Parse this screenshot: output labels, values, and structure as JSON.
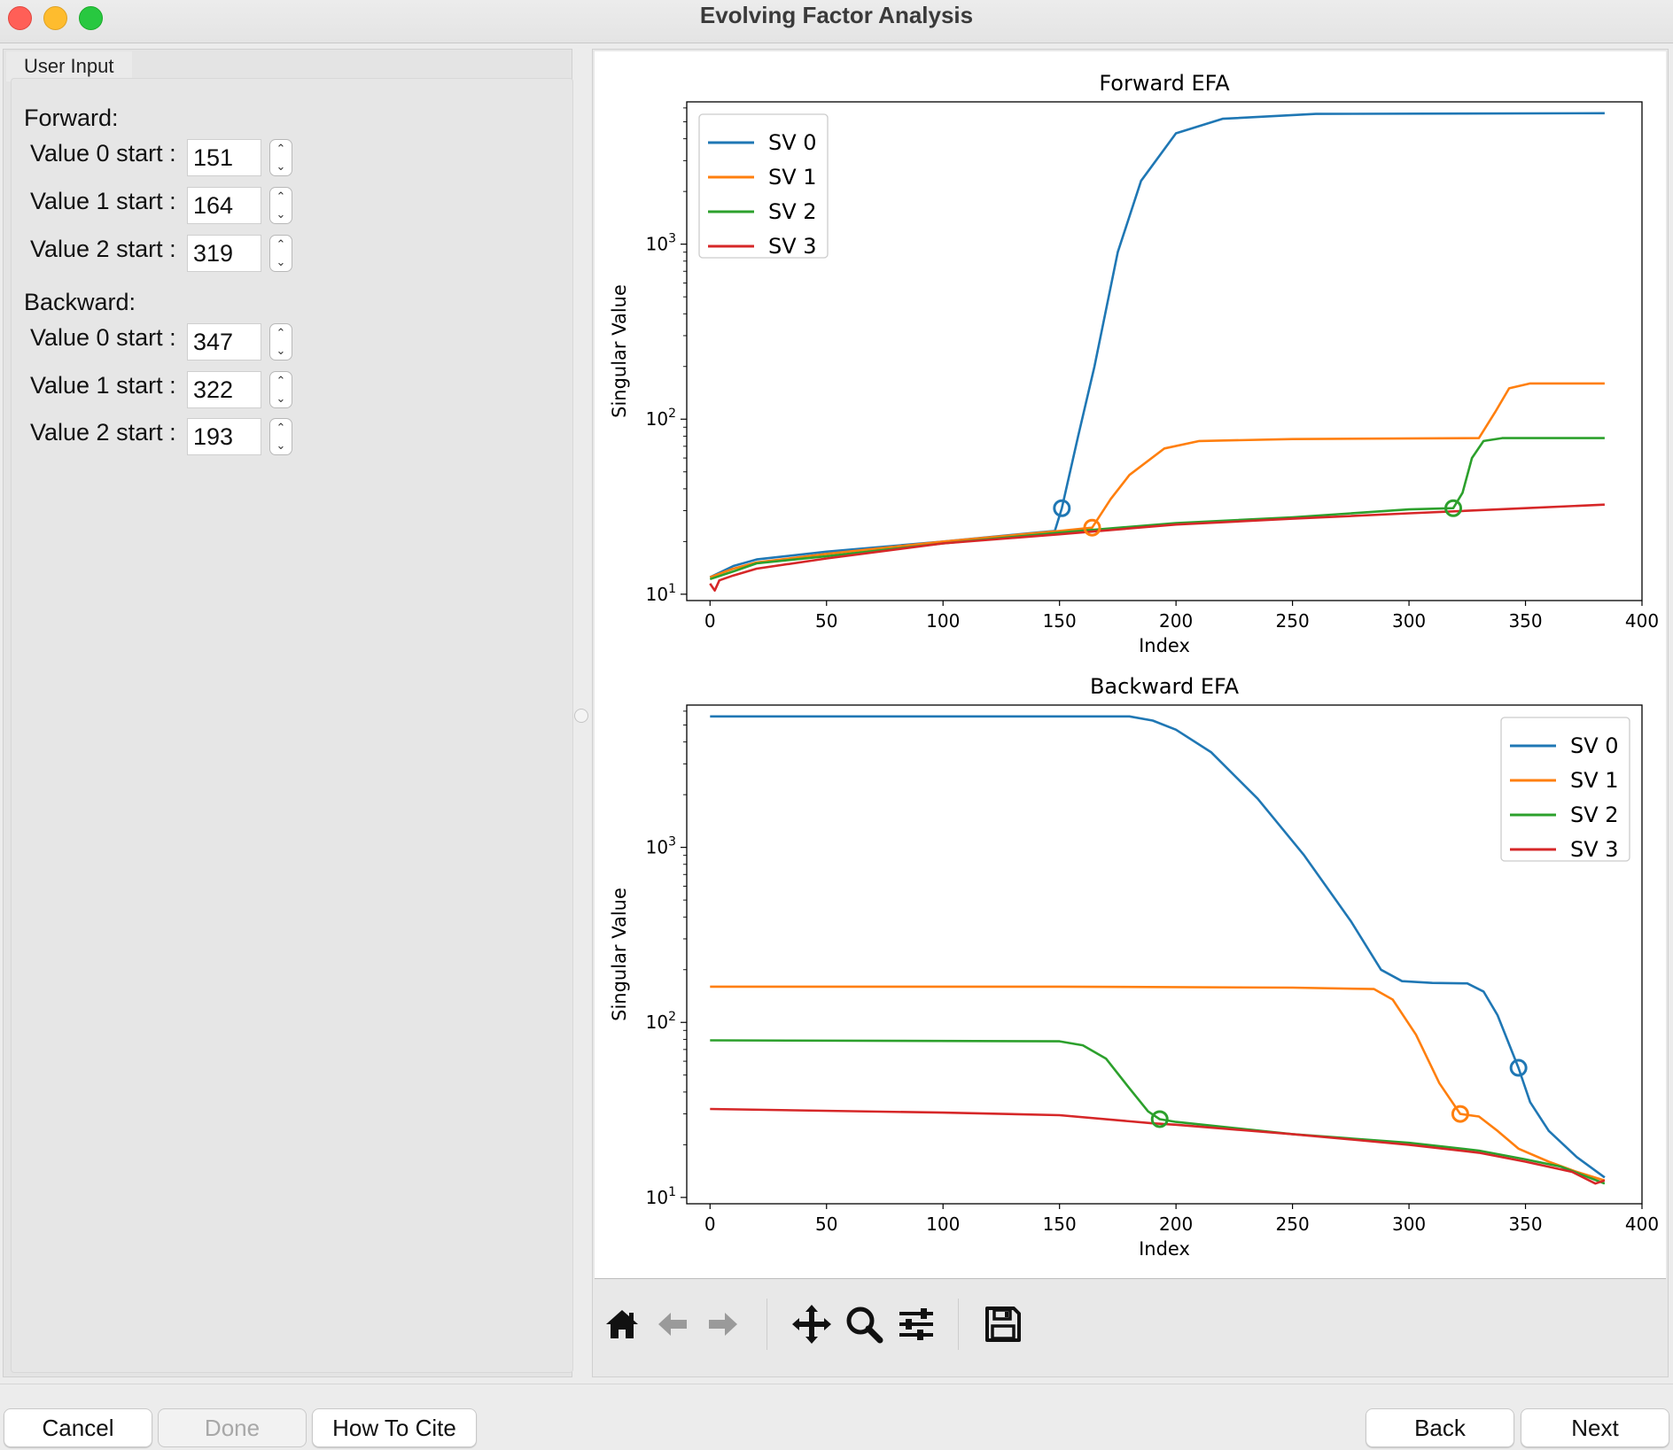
{
  "window": {
    "title": "Evolving Factor Analysis"
  },
  "user_input": {
    "group_title": "User Input",
    "forward": {
      "label": "Forward:",
      "rows": [
        {
          "label": "Value 0 start :",
          "value": "151"
        },
        {
          "label": "Value 1 start :",
          "value": "164"
        },
        {
          "label": "Value 2 start :",
          "value": "319"
        }
      ]
    },
    "backward": {
      "label": "Backward:",
      "rows": [
        {
          "label": "Value 0 start :",
          "value": "347"
        },
        {
          "label": "Value 1 start :",
          "value": "322"
        },
        {
          "label": "Value 2 start :",
          "value": "193"
        }
      ]
    }
  },
  "chart_data": [
    {
      "type": "line",
      "title": "Forward EFA",
      "xlabel": "Index",
      "ylabel": "Singular Value",
      "xlim": [
        -10,
        400
      ],
      "ylim": [
        9.2,
        6500
      ],
      "yscale": "log",
      "xticks": [
        "0",
        "50",
        "100",
        "150",
        "200",
        "250",
        "300",
        "350",
        "400"
      ],
      "yticks": [
        {
          "value": 10,
          "base": "10",
          "exp": "1"
        },
        {
          "value": 100,
          "base": "10",
          "exp": "2"
        },
        {
          "value": 1000,
          "base": "10",
          "exp": "3"
        }
      ],
      "legend_position": "top-left",
      "series": [
        {
          "name": "SV 0",
          "color": "#1f77b4",
          "points": [
            [
              0,
              12.5
            ],
            [
              10,
              14.5
            ],
            [
              20,
              15.8
            ],
            [
              50,
              17.5
            ],
            [
              100,
              20
            ],
            [
              140,
              22.5
            ],
            [
              148,
              23
            ],
            [
              151,
              31
            ],
            [
              158,
              80
            ],
            [
              165,
              200
            ],
            [
              175,
              900
            ],
            [
              185,
              2300
            ],
            [
              200,
              4300
            ],
            [
              220,
              5200
            ],
            [
              260,
              5550
            ],
            [
              384,
              5600
            ]
          ]
        },
        {
          "name": "SV 1",
          "color": "#ff7f0e",
          "points": [
            [
              0,
              12.5
            ],
            [
              10,
              14
            ],
            [
              20,
              15.2
            ],
            [
              50,
              17
            ],
            [
              100,
              20
            ],
            [
              150,
              23
            ],
            [
              164,
              24
            ],
            [
              172,
              35
            ],
            [
              180,
              48
            ],
            [
              195,
              68
            ],
            [
              210,
              75
            ],
            [
              250,
              77
            ],
            [
              330,
              78
            ],
            [
              337,
              110
            ],
            [
              343,
              150
            ],
            [
              352,
              160
            ],
            [
              384,
              160
            ]
          ]
        },
        {
          "name": "SV 2",
          "color": "#2ca02c",
          "points": [
            [
              0,
              12.2
            ],
            [
              10,
              13.5
            ],
            [
              20,
              15
            ],
            [
              50,
              16.5
            ],
            [
              100,
              19.5
            ],
            [
              150,
              22.5
            ],
            [
              200,
              25.5
            ],
            [
              250,
              27.5
            ],
            [
              300,
              30.5
            ],
            [
              319,
              31
            ],
            [
              323,
              38
            ],
            [
              327,
              60
            ],
            [
              332,
              75
            ],
            [
              340,
              78
            ],
            [
              384,
              78
            ]
          ]
        },
        {
          "name": "SV 3",
          "color": "#d62728",
          "points": [
            [
              0,
              11.5
            ],
            [
              2,
              10.5
            ],
            [
              4,
              12
            ],
            [
              10,
              12.8
            ],
            [
              20,
              14
            ],
            [
              50,
              16
            ],
            [
              100,
              19.5
            ],
            [
              150,
              22
            ],
            [
              200,
              25
            ],
            [
              250,
              27
            ],
            [
              300,
              29
            ],
            [
              350,
              31
            ],
            [
              384,
              32.5
            ]
          ]
        }
      ],
      "markers": [
        {
          "series": "SV 0",
          "x": 151,
          "y": 31
        },
        {
          "series": "SV 1",
          "x": 164,
          "y": 24
        },
        {
          "series": "SV 2",
          "x": 319,
          "y": 31
        }
      ]
    },
    {
      "type": "line",
      "title": "Backward EFA",
      "xlabel": "Index",
      "ylabel": "Singular Value",
      "xlim": [
        -10,
        400
      ],
      "ylim": [
        9.2,
        6500
      ],
      "yscale": "log",
      "xticks": [
        "0",
        "50",
        "100",
        "150",
        "200",
        "250",
        "300",
        "350",
        "400"
      ],
      "yticks": [
        {
          "value": 10,
          "base": "10",
          "exp": "1"
        },
        {
          "value": 100,
          "base": "10",
          "exp": "2"
        },
        {
          "value": 1000,
          "base": "10",
          "exp": "3"
        }
      ],
      "legend_position": "top-right",
      "series": [
        {
          "name": "SV 0",
          "color": "#1f77b4",
          "points": [
            [
              0,
              5600
            ],
            [
              180,
              5600
            ],
            [
              190,
              5300
            ],
            [
              200,
              4700
            ],
            [
              215,
              3500
            ],
            [
              235,
              1900
            ],
            [
              255,
              900
            ],
            [
              275,
              380
            ],
            [
              288,
              200
            ],
            [
              297,
              172
            ],
            [
              310,
              168
            ],
            [
              325,
              167
            ],
            [
              332,
              150
            ],
            [
              338,
              110
            ],
            [
              347,
              55
            ],
            [
              352,
              35
            ],
            [
              360,
              24
            ],
            [
              372,
              17
            ],
            [
              384,
              13
            ]
          ]
        },
        {
          "name": "SV 1",
          "color": "#ff7f0e",
          "points": [
            [
              0,
              160
            ],
            [
              150,
              160
            ],
            [
              250,
              158
            ],
            [
              285,
              155
            ],
            [
              293,
              135
            ],
            [
              303,
              85
            ],
            [
              313,
              45
            ],
            [
              322,
              30
            ],
            [
              330,
              29
            ],
            [
              338,
              24
            ],
            [
              347,
              19
            ],
            [
              360,
              16
            ],
            [
              372,
              14
            ],
            [
              384,
              12.5
            ]
          ]
        },
        {
          "name": "SV 2",
          "color": "#2ca02c",
          "points": [
            [
              0,
              79
            ],
            [
              150,
              78
            ],
            [
              160,
              74
            ],
            [
              170,
              62
            ],
            [
              180,
              42
            ],
            [
              188,
              31
            ],
            [
              193,
              28
            ],
            [
              200,
              27
            ],
            [
              250,
              23
            ],
            [
              300,
              20.5
            ],
            [
              330,
              18.5
            ],
            [
              350,
              16.5
            ],
            [
              365,
              15
            ],
            [
              384,
              12
            ]
          ]
        },
        {
          "name": "SV 3",
          "color": "#d62728",
          "points": [
            [
              0,
              32
            ],
            [
              100,
              30.5
            ],
            [
              150,
              29.5
            ],
            [
              190,
              26.5
            ],
            [
              200,
              26
            ],
            [
              250,
              23
            ],
            [
              300,
              20
            ],
            [
              330,
              18
            ],
            [
              350,
              16
            ],
            [
              370,
              14
            ],
            [
              380,
              12
            ],
            [
              384,
              12.5
            ]
          ]
        }
      ],
      "markers": [
        {
          "series": "SV 0",
          "x": 347,
          "y": 55
        },
        {
          "series": "SV 1",
          "x": 322,
          "y": 30
        },
        {
          "series": "SV 2",
          "x": 193,
          "y": 28
        }
      ]
    }
  ],
  "toolbar": {
    "icons": [
      "home-icon",
      "back-arrow-icon",
      "forward-arrow-icon",
      "pan-icon",
      "zoom-icon",
      "configure-subplots-icon",
      "save-icon"
    ]
  },
  "buttons": {
    "cancel": "Cancel",
    "done": "Done",
    "cite": "How To Cite",
    "back": "Back",
    "next": "Next"
  }
}
